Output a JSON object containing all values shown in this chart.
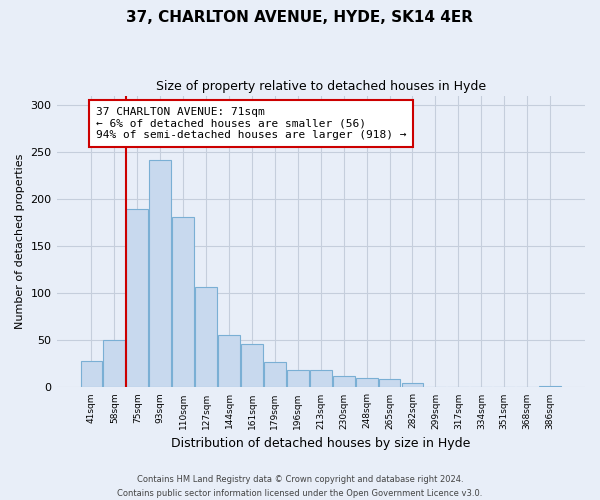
{
  "title": "37, CHARLTON AVENUE, HYDE, SK14 4ER",
  "subtitle": "Size of property relative to detached houses in Hyde",
  "xlabel": "Distribution of detached houses by size in Hyde",
  "ylabel": "Number of detached properties",
  "bar_labels": [
    "41sqm",
    "58sqm",
    "75sqm",
    "93sqm",
    "110sqm",
    "127sqm",
    "144sqm",
    "161sqm",
    "179sqm",
    "196sqm",
    "213sqm",
    "230sqm",
    "248sqm",
    "265sqm",
    "282sqm",
    "299sqm",
    "317sqm",
    "334sqm",
    "351sqm",
    "368sqm",
    "386sqm"
  ],
  "bar_values": [
    28,
    50,
    190,
    242,
    181,
    107,
    56,
    46,
    27,
    18,
    18,
    12,
    10,
    9,
    5,
    0,
    0,
    0,
    0,
    0,
    2
  ],
  "bar_color": "#c8d9ee",
  "bar_edge_color": "#7aafd4",
  "vline_index": 2,
  "vline_color": "#cc0000",
  "annotation_text": "37 CHARLTON AVENUE: 71sqm\n← 6% of detached houses are smaller (56)\n94% of semi-detached houses are larger (918) →",
  "annotation_box_color": "#ffffff",
  "annotation_box_edge": "#cc0000",
  "ylim": [
    0,
    310
  ],
  "yticks": [
    0,
    50,
    100,
    150,
    200,
    250,
    300
  ],
  "footer_text": "Contains HM Land Registry data © Crown copyright and database right 2024.\nContains public sector information licensed under the Open Government Licence v3.0.",
  "background_color": "#e8eef8",
  "grid_color": "#c5cedc"
}
